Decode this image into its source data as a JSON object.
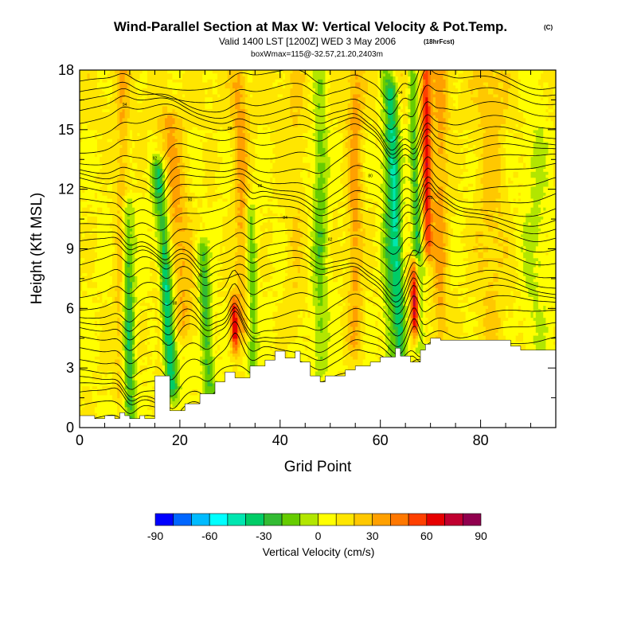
{
  "chart_data": {
    "type": "heatmap",
    "title": "Wind-Parallel Section at Max W: Vertical Velocity & Pot.Temp.",
    "title_mark": "(C)",
    "subtitle_prefix": "Valid 1400 LST [1200Z] WED 3 May 2006",
    "subtitle_suffix": "(18hrFcst)",
    "subtitle2": "boxWmax=115@-32.57,21.20,2403m",
    "xlabel": "Grid Point",
    "ylabel": "Height (Kft MSL)",
    "xlim": [
      0,
      95
    ],
    "ylim": [
      0,
      18
    ],
    "xticks": [
      0,
      20,
      40,
      60,
      80
    ],
    "yticks": [
      0,
      3,
      6,
      9,
      12,
      15,
      18
    ],
    "colorbar": {
      "label": "Vertical Velocity (cm/s)",
      "min": -90,
      "max": 90,
      "step": 10,
      "ticks": [
        -90,
        -60,
        -30,
        0,
        30,
        60,
        90
      ],
      "colors": [
        "#0000ff",
        "#0066ff",
        "#00bbff",
        "#00ffff",
        "#00e6b0",
        "#00cc66",
        "#33bb33",
        "#66cc00",
        "#b2e600",
        "#ffff00",
        "#ffe600",
        "#ffc800",
        "#ffa000",
        "#ff7800",
        "#ff4000",
        "#e60000",
        "#c00030",
        "#90004e"
      ]
    },
    "terrain_kft": [
      [
        0,
        0.6
      ],
      [
        3,
        0.6
      ],
      [
        3,
        0.45
      ],
      [
        5,
        0.45
      ],
      [
        5,
        0.6
      ],
      [
        7,
        0.6
      ],
      [
        7,
        0.45
      ],
      [
        8,
        0.45
      ],
      [
        8,
        0.75
      ],
      [
        9,
        0.75
      ],
      [
        9,
        0.6
      ],
      [
        10,
        0.6
      ],
      [
        10,
        0.45
      ],
      [
        12,
        0.45
      ],
      [
        12,
        0.6
      ],
      [
        13,
        0.6
      ],
      [
        13,
        0.45
      ],
      [
        15,
        0.45
      ],
      [
        15,
        2.6
      ],
      [
        18,
        2.6
      ],
      [
        18,
        0.85
      ],
      [
        21,
        0.85
      ],
      [
        21,
        1.2
      ],
      [
        24,
        1.2
      ],
      [
        24,
        1.7
      ],
      [
        27,
        1.7
      ],
      [
        27,
        2.3
      ],
      [
        29,
        2.3
      ],
      [
        29,
        2.8
      ],
      [
        31,
        2.8
      ],
      [
        31,
        2.5
      ],
      [
        34,
        2.5
      ],
      [
        34,
        3.1
      ],
      [
        37,
        3.1
      ],
      [
        37,
        3.4
      ],
      [
        39,
        3.4
      ],
      [
        39,
        3.85
      ],
      [
        41,
        3.85
      ],
      [
        41,
        3.5
      ],
      [
        43,
        3.5
      ],
      [
        43,
        3.85
      ],
      [
        44,
        3.85
      ],
      [
        44,
        3.3
      ],
      [
        46,
        3.3
      ],
      [
        46,
        2.6
      ],
      [
        48,
        2.6
      ],
      [
        48,
        2.3
      ],
      [
        49,
        2.3
      ],
      [
        49,
        2.6
      ],
      [
        53,
        2.6
      ],
      [
        53,
        2.9
      ],
      [
        55,
        2.9
      ],
      [
        55,
        3.1
      ],
      [
        58,
        3.1
      ],
      [
        58,
        3.3
      ],
      [
        60,
        3.3
      ],
      [
        60,
        3.55
      ],
      [
        63,
        3.55
      ],
      [
        63,
        4.0
      ],
      [
        64,
        4.0
      ],
      [
        64,
        3.6
      ],
      [
        66,
        3.6
      ],
      [
        66,
        3.3
      ],
      [
        68,
        3.3
      ],
      [
        68,
        3.9
      ],
      [
        69,
        3.9
      ],
      [
        69,
        4.2
      ],
      [
        70,
        4.2
      ],
      [
        70,
        4.5
      ],
      [
        72,
        4.5
      ],
      [
        72,
        4.4
      ],
      [
        86,
        4.4
      ],
      [
        86,
        4.1
      ],
      [
        88,
        4.1
      ],
      [
        88,
        3.9
      ],
      [
        95,
        3.9
      ]
    ],
    "updrafts": [
      {
        "x": 8,
        "w": 1.3,
        "ybot": 2,
        "ytop": 18,
        "amp": 20,
        "tilt": 0.05
      },
      {
        "x": 10,
        "w": 1.2,
        "ybot": 0.5,
        "ytop": 11,
        "amp": -40,
        "tilt": -0.05
      },
      {
        "x": 16,
        "w": 1.0,
        "ybot": 3,
        "ytop": 11,
        "amp": 15,
        "tilt": 0
      },
      {
        "x": 18.5,
        "w": 1.4,
        "ybot": 2,
        "ytop": 13,
        "amp": -55,
        "tilt": -0.25
      },
      {
        "x": 21,
        "w": 2.5,
        "ybot": 5,
        "ytop": 15.5,
        "amp": 25,
        "tilt": -0.3
      },
      {
        "x": 26,
        "w": 1.2,
        "ybot": 1.5,
        "ytop": 9,
        "amp": -35,
        "tilt": -0.2
      },
      {
        "x": 31,
        "w": 0.9,
        "ybot": 4.2,
        "ytop": 6.2,
        "amp": 60,
        "tilt": -0.1
      },
      {
        "x": 33,
        "w": 1.5,
        "ybot": 5,
        "ytop": 18,
        "amp": 25,
        "tilt": -0.1
      },
      {
        "x": 34.5,
        "w": 1.1,
        "ybot": 3,
        "ytop": 11,
        "amp": -30,
        "tilt": -0.05
      },
      {
        "x": 43,
        "w": 2.0,
        "ybot": 5,
        "ytop": 18,
        "amp": 10,
        "tilt": 0
      },
      {
        "x": 48,
        "w": 1.5,
        "ybot": 3,
        "ytop": 18,
        "amp": -25,
        "tilt": 0
      },
      {
        "x": 55,
        "w": 1.5,
        "ybot": 4,
        "ytop": 18,
        "amp": 25,
        "tilt": 0
      },
      {
        "x": 62,
        "w": 1.3,
        "ybot": 3,
        "ytop": 18,
        "amp": -25,
        "tilt": -0.05
      },
      {
        "x": 64,
        "w": 1.2,
        "ybot": 3.3,
        "ytop": 17,
        "amp": -45,
        "tilt": -0.12
      },
      {
        "x": 67,
        "w": 0.9,
        "ybot": 5,
        "ytop": 8,
        "amp": 75,
        "tilt": -0.05
      },
      {
        "x": 68,
        "w": 0.9,
        "ybot": 4,
        "ytop": 18,
        "amp": -35,
        "tilt": -0.12
      },
      {
        "x": 69.5,
        "w": 1.0,
        "ybot": 9,
        "ytop": 18,
        "amp": 55,
        "tilt": -0.05
      },
      {
        "x": 72,
        "w": 1.5,
        "ybot": 4.5,
        "ytop": 18,
        "amp": 25,
        "tilt": 0
      },
      {
        "x": 82,
        "w": 3.0,
        "ybot": 4.5,
        "ytop": 18,
        "amp": 15,
        "tilt": 0
      },
      {
        "x": 91,
        "w": 2.5,
        "ybot": 4,
        "ytop": 18,
        "amp": -12,
        "tilt": 0
      }
    ],
    "potential_temperature": {
      "contour_count": 34,
      "labels": [
        "94",
        "92",
        "90",
        "88",
        "86",
        "84",
        "82",
        "80"
      ]
    }
  }
}
